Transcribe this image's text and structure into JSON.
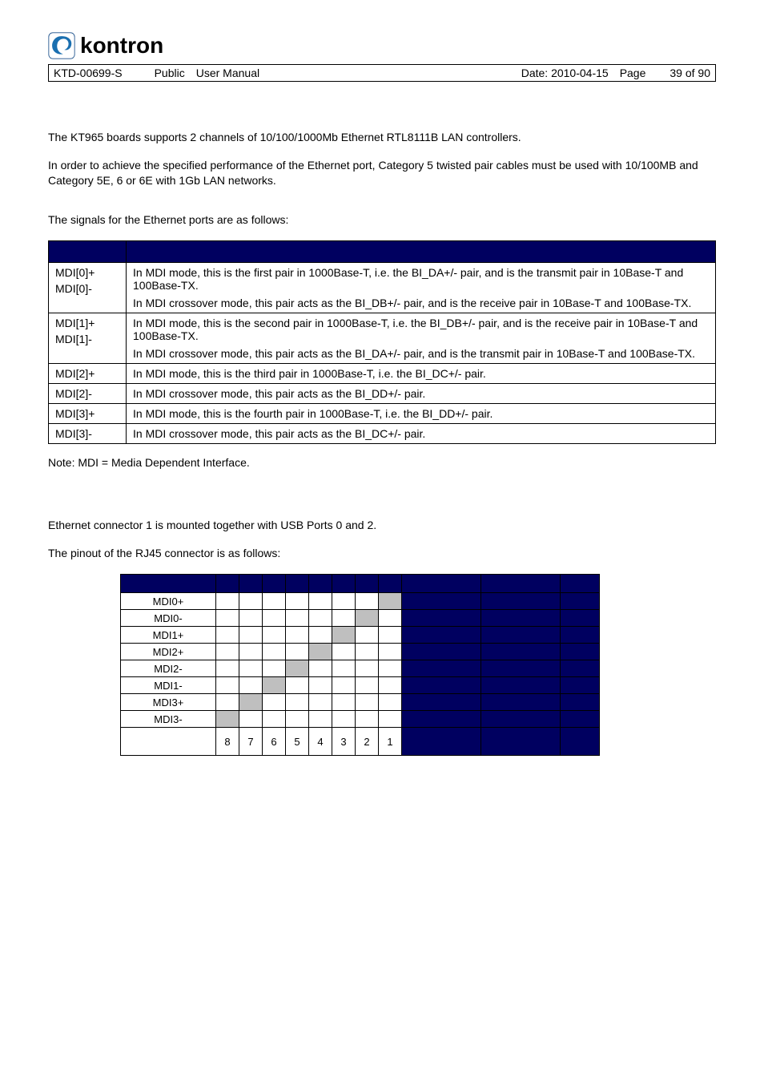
{
  "header": {
    "doc_id": "KTD-00699-S",
    "classification": "Public",
    "doc_type": "User Manual",
    "date_label": "Date: 2010-04-15",
    "page_label": "Page",
    "page_num": "39 of 90"
  },
  "logo": {
    "text": "kontron"
  },
  "intro": {
    "p1": "The KT965 boards supports 2 channels of 10/100/1000Mb Ethernet RTL8111B LAN controllers.",
    "p2": "In order to achieve the specified performance of the Ethernet port, Category 5 twisted pair cables must be used with 10/100MB and Category 5E,  6 or 6E with 1Gb LAN networks.",
    "p3": "The signals for the Ethernet ports are as follows:"
  },
  "signals": [
    {
      "names": [
        "MDI[0]+",
        "MDI[0]-"
      ],
      "desc": [
        "In MDI mode, this is the first pair in 1000Base-T, i.e. the BI_DA+/- pair, and is the transmit pair in 10Base-T and 100Base-TX.",
        "In MDI crossover mode, this pair acts as the BI_DB+/- pair, and is the receive pair in 10Base-T and 100Base-TX."
      ]
    },
    {
      "names": [
        "MDI[1]+",
        "MDI[1]-"
      ],
      "desc": [
        "In MDI mode, this is the second pair in 1000Base-T, i.e. the BI_DB+/- pair, and is the receive pair in 10Base-T and 100Base-TX.",
        "In MDI crossover mode, this pair acts as the BI_DA+/- pair, and is the transmit pair in 10Base-T and 100Base-TX."
      ]
    },
    {
      "names": [
        "MDI[2]+"
      ],
      "desc": [
        "In MDI mode, this is the third pair in 1000Base-T, i.e. the BI_DC+/- pair."
      ]
    },
    {
      "names": [
        "MDI[2]-"
      ],
      "desc": [
        "In MDI crossover mode, this pair acts as the BI_DD+/- pair."
      ]
    },
    {
      "names": [
        "MDI[3]+"
      ],
      "desc": [
        "In MDI mode, this is the fourth pair in 1000Base-T, i.e. the BI_DD+/- pair."
      ]
    },
    {
      "names": [
        "MDI[3]-"
      ],
      "desc": [
        "In MDI crossover mode, this pair acts as the BI_DC+/- pair."
      ]
    }
  ],
  "note": "Note: MDI = Media Dependent Interface.",
  "eth_section": {
    "p1": "Ethernet connector 1 is mounted together with USB Ports 0 and 2.",
    "p2": "The pinout of the RJ45 connector is as follows:"
  },
  "pinout": {
    "rows": [
      {
        "name": "MDI0+",
        "fills": [
          0,
          0,
          0,
          0,
          0,
          0,
          0,
          1
        ]
      },
      {
        "name": "MDI0-",
        "fills": [
          0,
          0,
          0,
          0,
          0,
          0,
          1,
          0
        ]
      },
      {
        "name": "MDI1+",
        "fills": [
          0,
          0,
          0,
          0,
          0,
          1,
          0,
          0
        ]
      },
      {
        "name": "MDI2+",
        "fills": [
          0,
          0,
          0,
          0,
          1,
          0,
          0,
          0
        ]
      },
      {
        "name": "MDI2-",
        "fills": [
          0,
          0,
          0,
          1,
          0,
          0,
          0,
          0
        ]
      },
      {
        "name": "MDI1-",
        "fills": [
          0,
          0,
          1,
          0,
          0,
          0,
          0,
          0
        ]
      },
      {
        "name": "MDI3+",
        "fills": [
          0,
          1,
          0,
          0,
          0,
          0,
          0,
          0
        ]
      },
      {
        "name": "MDI3-",
        "fills": [
          1,
          0,
          0,
          0,
          0,
          0,
          0,
          0
        ]
      }
    ],
    "numbers": [
      "8",
      "7",
      "6",
      "5",
      "4",
      "3",
      "2",
      "1"
    ]
  },
  "colors": {
    "header_bg": "#000060",
    "fill_gray": "#bfbfbf"
  }
}
